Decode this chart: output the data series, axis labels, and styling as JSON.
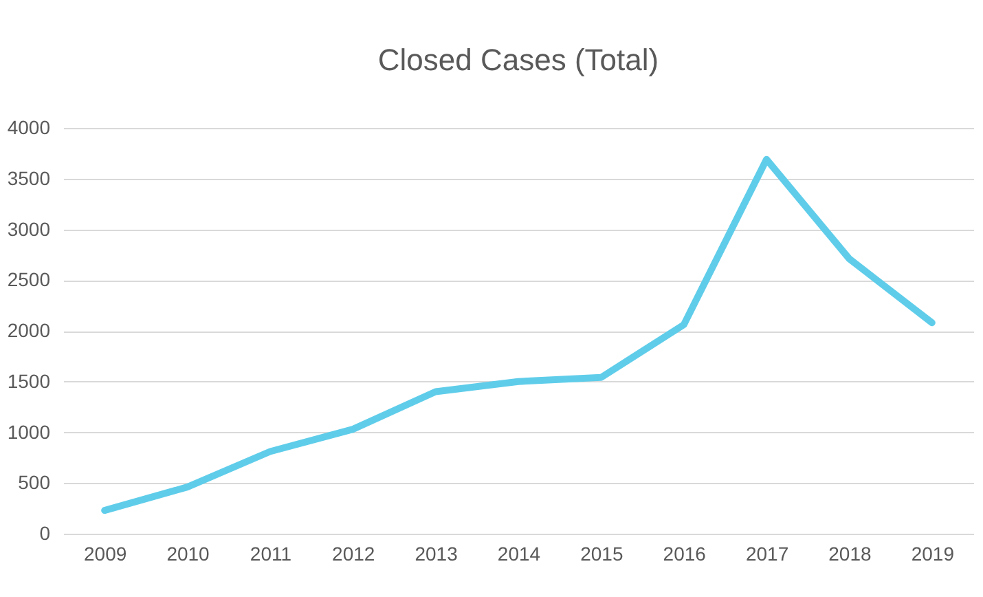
{
  "chart_data": {
    "type": "line",
    "title": "Closed Cases (Total)",
    "categories": [
      "2009",
      "2010",
      "2011",
      "2012",
      "2013",
      "2014",
      "2015",
      "2016",
      "2017",
      "2018",
      "2019"
    ],
    "series": [
      {
        "color": "#5fcdea",
        "values": [
          230,
          460,
          810,
          1030,
          1400,
          1500,
          1540,
          2060,
          3690,
          2710,
          2080
        ]
      }
    ],
    "ylim": [
      0,
      4000
    ],
    "yticks": [
      0,
      500,
      1000,
      1500,
      2000,
      2500,
      3000,
      3500,
      4000
    ],
    "grid": "y",
    "marker": "none",
    "line_style": "solid"
  }
}
